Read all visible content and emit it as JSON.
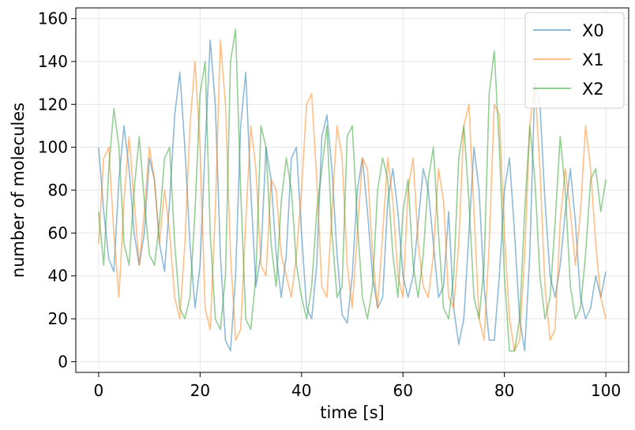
{
  "chart_data": {
    "type": "line",
    "title": "",
    "xlabel": "time [s]",
    "ylabel": "number of molecules",
    "xlim": [
      -4.5,
      104.5
    ],
    "ylim": [
      -5,
      165
    ],
    "xticks": [
      0,
      20,
      40,
      60,
      80,
      100
    ],
    "xtick_labels": [
      "0",
      "20",
      "40",
      "60",
      "80",
      "100"
    ],
    "yticks": [
      0,
      20,
      40,
      60,
      80,
      100,
      120,
      140,
      160
    ],
    "ytick_labels": [
      "0",
      "20",
      "40",
      "60",
      "80",
      "100",
      "120",
      "140",
      "160"
    ],
    "grid": true,
    "legend_position": "top-right",
    "series": [
      {
        "name": "X0",
        "color": "#1f77b4",
        "alpha": 0.5,
        "x": [
          0,
          1,
          2,
          3,
          4,
          5,
          6,
          7,
          8,
          9,
          10,
          11,
          12,
          13,
          14,
          15,
          16,
          17,
          18,
          19,
          20,
          21,
          22,
          23,
          24,
          25,
          26,
          27,
          28,
          29,
          30,
          31,
          32,
          33,
          34,
          35,
          36,
          37,
          38,
          39,
          40,
          41,
          42,
          43,
          44,
          45,
          46,
          47,
          48,
          49,
          50,
          51,
          52,
          53,
          54,
          55,
          56,
          57,
          58,
          59,
          60,
          61,
          62,
          63,
          64,
          65,
          66,
          67,
          68,
          69,
          70,
          71,
          72,
          73,
          74,
          75,
          76,
          77,
          78,
          79,
          80,
          81,
          82,
          83,
          84,
          85,
          86,
          87,
          88,
          89,
          90,
          91,
          92,
          93,
          94,
          95,
          96,
          97,
          98,
          99,
          100
        ],
        "y": [
          100,
          70,
          48,
          42,
          85,
          110,
          90,
          60,
          45,
          60,
          95,
          85,
          55,
          42,
          75,
          115,
          135,
          100,
          55,
          25,
          45,
          100,
          150,
          120,
          50,
          10,
          5,
          40,
          110,
          135,
          80,
          35,
          50,
          100,
          85,
          50,
          30,
          50,
          95,
          100,
          60,
          25,
          20,
          45,
          105,
          115,
          90,
          50,
          22,
          18,
          40,
          80,
          95,
          70,
          40,
          25,
          30,
          75,
          90,
          70,
          40,
          30,
          40,
          65,
          90,
          80,
          55,
          30,
          35,
          70,
          25,
          8,
          20,
          60,
          100,
          80,
          35,
          10,
          10,
          40,
          80,
          95,
          60,
          20,
          5,
          50,
          130,
          120,
          75,
          40,
          30,
          45,
          70,
          90,
          65,
          30,
          20,
          25,
          40,
          30,
          42
        ]
      },
      {
        "name": "X1",
        "color": "#ff7f0e",
        "alpha": 0.5,
        "x": [
          0,
          1,
          2,
          3,
          4,
          5,
          6,
          7,
          8,
          9,
          10,
          11,
          12,
          13,
          14,
          15,
          16,
          17,
          18,
          19,
          20,
          21,
          22,
          23,
          24,
          25,
          26,
          27,
          28,
          29,
          30,
          31,
          32,
          33,
          34,
          35,
          36,
          37,
          38,
          39,
          40,
          41,
          42,
          43,
          44,
          45,
          46,
          47,
          48,
          49,
          50,
          51,
          52,
          53,
          54,
          55,
          56,
          57,
          58,
          59,
          60,
          61,
          62,
          63,
          64,
          65,
          66,
          67,
          68,
          69,
          70,
          71,
          72,
          73,
          74,
          75,
          76,
          77,
          78,
          79,
          80,
          81,
          82,
          83,
          84,
          85,
          86,
          87,
          88,
          89,
          90,
          91,
          92,
          93,
          94,
          95,
          96,
          97,
          98,
          99,
          100
        ],
        "y": [
          55,
          95,
          100,
          60,
          30,
          75,
          105,
          75,
          45,
          70,
          100,
          85,
          55,
          80,
          60,
          30,
          20,
          55,
          110,
          140,
          100,
          25,
          15,
          70,
          150,
          120,
          50,
          10,
          15,
          65,
          110,
          90,
          45,
          40,
          85,
          80,
          50,
          40,
          30,
          50,
          80,
          120,
          125,
          85,
          35,
          30,
          70,
          110,
          95,
          45,
          25,
          60,
          95,
          90,
          50,
          25,
          60,
          95,
          75,
          40,
          30,
          80,
          95,
          55,
          35,
          30,
          50,
          90,
          75,
          30,
          25,
          55,
          110,
          120,
          70,
          20,
          10,
          55,
          120,
          115,
          60,
          20,
          5,
          10,
          50,
          110,
          130,
          90,
          35,
          10,
          15,
          65,
          90,
          70,
          45,
          70,
          110,
          90,
          55,
          30,
          20
        ]
      },
      {
        "name": "X2",
        "color": "#2ca02c",
        "alpha": 0.5,
        "x": [
          0,
          1,
          2,
          3,
          4,
          5,
          6,
          7,
          8,
          9,
          10,
          11,
          12,
          13,
          14,
          15,
          16,
          17,
          18,
          19,
          20,
          21,
          22,
          23,
          24,
          25,
          26,
          27,
          28,
          29,
          30,
          31,
          32,
          33,
          34,
          35,
          36,
          37,
          38,
          39,
          40,
          41,
          42,
          43,
          44,
          45,
          46,
          47,
          48,
          49,
          50,
          51,
          52,
          53,
          54,
          55,
          56,
          57,
          58,
          59,
          60,
          61,
          62,
          63,
          64,
          65,
          66,
          67,
          68,
          69,
          70,
          71,
          72,
          73,
          74,
          75,
          76,
          77,
          78,
          79,
          80,
          81,
          82,
          83,
          84,
          85,
          86,
          87,
          88,
          89,
          90,
          91,
          92,
          93,
          94,
          95,
          96,
          97,
          98,
          99,
          100
        ],
        "y": [
          70,
          45,
          90,
          118,
          100,
          55,
          45,
          80,
          105,
          75,
          50,
          45,
          65,
          95,
          100,
          55,
          25,
          20,
          30,
          70,
          125,
          140,
          60,
          20,
          15,
          40,
          140,
          155,
          80,
          20,
          15,
          40,
          110,
          100,
          55,
          35,
          75,
          95,
          80,
          45,
          30,
          20,
          35,
          70,
          90,
          110,
          60,
          30,
          35,
          105,
          110,
          65,
          30,
          20,
          35,
          80,
          95,
          85,
          50,
          30,
          70,
          85,
          45,
          30,
          50,
          85,
          100,
          60,
          25,
          20,
          40,
          95,
          110,
          75,
          30,
          20,
          45,
          125,
          145,
          100,
          40,
          5,
          5,
          20,
          70,
          110,
          85,
          40,
          20,
          30,
          65,
          105,
          80,
          35,
          20,
          25,
          50,
          85,
          90,
          70,
          85
        ]
      }
    ]
  }
}
